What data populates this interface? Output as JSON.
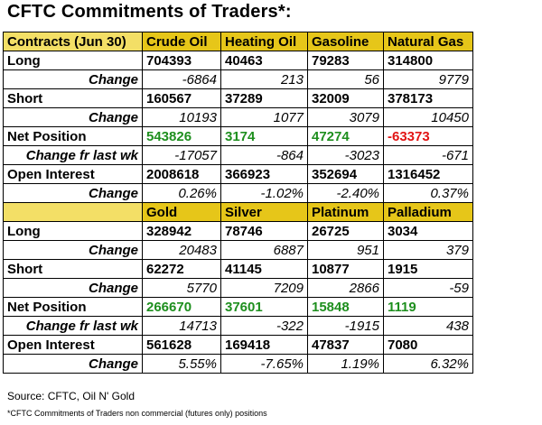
{
  "title": "CFTC Commitments of Traders*:",
  "energy": {
    "header": [
      "Contracts (Jun 30)",
      "Crude Oil",
      "Heating Oil",
      "Gasoline",
      "Natural Gas"
    ],
    "long": [
      "Long",
      "704393",
      "40463",
      "79283",
      "314800"
    ],
    "long_change": [
      "Change",
      "-6864",
      "213",
      "56",
      "9779"
    ],
    "short": [
      "Short",
      "160567",
      "37289",
      "32009",
      "378173"
    ],
    "short_change": [
      "Change",
      "10193",
      "1077",
      "3079",
      "10450"
    ],
    "net": [
      "Net Position",
      "543826",
      "3174",
      "47274",
      "-63373"
    ],
    "net_change": [
      "Change fr last wk",
      "-17057",
      "-864",
      "-3023",
      "-671"
    ],
    "oi": [
      "Open Interest",
      "2008618",
      "366923",
      "352694",
      "1316452"
    ],
    "oi_change": [
      "Change",
      "0.26%",
      "-1.02%",
      "-2.40%",
      "0.37%"
    ]
  },
  "metals": {
    "header": [
      "",
      "Gold",
      "Silver",
      "Platinum",
      "Palladium"
    ],
    "long": [
      "Long",
      "328942",
      "78746",
      "26725",
      "3034"
    ],
    "long_change": [
      "Change",
      "20483",
      "6887",
      "951",
      "379"
    ],
    "short": [
      "Short",
      "62272",
      "41145",
      "10877",
      "1915"
    ],
    "short_change": [
      "Change",
      "5770",
      "7209",
      "2866",
      "-59"
    ],
    "net": [
      "Net Position",
      "266670",
      "37601",
      "15848",
      "1119"
    ],
    "net_change": [
      "Change fr last wk",
      "14713",
      "-322",
      "-1915",
      "438"
    ],
    "oi": [
      "Open Interest",
      "561628",
      "169418",
      "47837",
      "7080"
    ],
    "oi_change": [
      "Change",
      "5.55%",
      "-7.65%",
      "1.19%",
      "6.32%"
    ]
  },
  "colors": {
    "header_bg": "#e6c619",
    "positive": "#1e8f1e",
    "negative": "#e21414"
  },
  "source": "Source: CFTC, Oil N' Gold",
  "footnote": "*CFTC Commitments of Traders non commercial (futures only) positions"
}
